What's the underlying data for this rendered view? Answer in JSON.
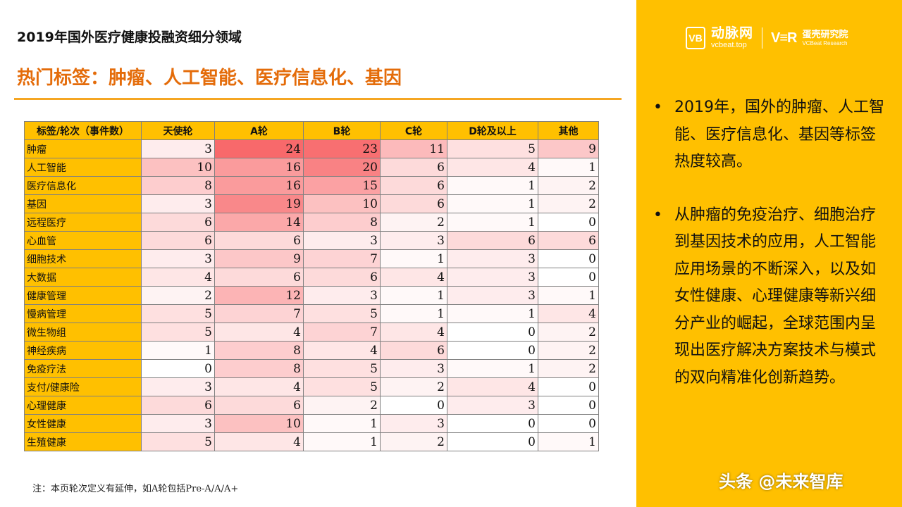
{
  "title": "2019年国外医疗健康投融资细分领域",
  "subtitle": "热门标签：肿瘤、人工智能、医疗信息化、基因",
  "logo": {
    "mark": "VB",
    "cn": "动脉网",
    "en": "vcbeat.top",
    "vbr_mark": "V≡R",
    "vbr_cn": "蛋壳研究院",
    "vbr_en": "VCBeat Research"
  },
  "table": {
    "headers": [
      "标签/轮次（事件数）",
      "天使轮",
      "A轮",
      "B轮",
      "C轮",
      "D轮及以上",
      "其他"
    ],
    "rows": [
      {
        "label": "肿瘤",
        "values": [
          3,
          24,
          23,
          11,
          5,
          9
        ]
      },
      {
        "label": "人工智能",
        "values": [
          10,
          16,
          20,
          6,
          4,
          1
        ]
      },
      {
        "label": "医疗信息化",
        "values": [
          8,
          16,
          15,
          6,
          1,
          2
        ]
      },
      {
        "label": "基因",
        "values": [
          3,
          19,
          10,
          6,
          1,
          2
        ]
      },
      {
        "label": "远程医疗",
        "values": [
          6,
          14,
          8,
          2,
          1,
          0
        ]
      },
      {
        "label": "心血管",
        "values": [
          6,
          6,
          3,
          3,
          6,
          6
        ]
      },
      {
        "label": "细胞技术",
        "values": [
          3,
          9,
          7,
          1,
          3,
          0
        ]
      },
      {
        "label": "大数据",
        "values": [
          4,
          6,
          6,
          4,
          3,
          0
        ]
      },
      {
        "label": "健康管理",
        "values": [
          2,
          12,
          3,
          1,
          3,
          1
        ]
      },
      {
        "label": "慢病管理",
        "values": [
          5,
          7,
          5,
          1,
          1,
          4
        ]
      },
      {
        "label": "微生物组",
        "values": [
          5,
          4,
          7,
          4,
          0,
          2
        ]
      },
      {
        "label": "神经疾病",
        "values": [
          1,
          8,
          4,
          6,
          0,
          2
        ]
      },
      {
        "label": "免疫疗法",
        "values": [
          0,
          8,
          5,
          3,
          1,
          2
        ]
      },
      {
        "label": "支付/健康险",
        "values": [
          3,
          4,
          5,
          2,
          4,
          0
        ]
      },
      {
        "label": "心理健康",
        "values": [
          6,
          6,
          2,
          0,
          3,
          0
        ]
      },
      {
        "label": "女性健康",
        "values": [
          3,
          10,
          1,
          3,
          0,
          0
        ]
      },
      {
        "label": "生殖健康",
        "values": [
          5,
          4,
          1,
          2,
          0,
          1
        ]
      }
    ]
  },
  "heat_colors": {
    "low": "#ffffff",
    "high": "#f8696b"
  },
  "note": "注：本页轮次定义有延伸，如A轮包括Pre-A/A/A+",
  "bullets": [
    "2019年，国外的肿瘤、人工智能、医疗信息化、基因等标签热度较高。",
    "从肿瘤的免疫治疗、细胞治疗到基因技术的应用，人工智能应用场景的不断深入，以及如女性健康、心理健康等新兴细分产业的崛起，全球范围内呈现出医疗解决方案技术与模式的双向精准化创新趋势。"
  ],
  "bullet_marker": "•",
  "watermark": "头条 @未来智库"
}
